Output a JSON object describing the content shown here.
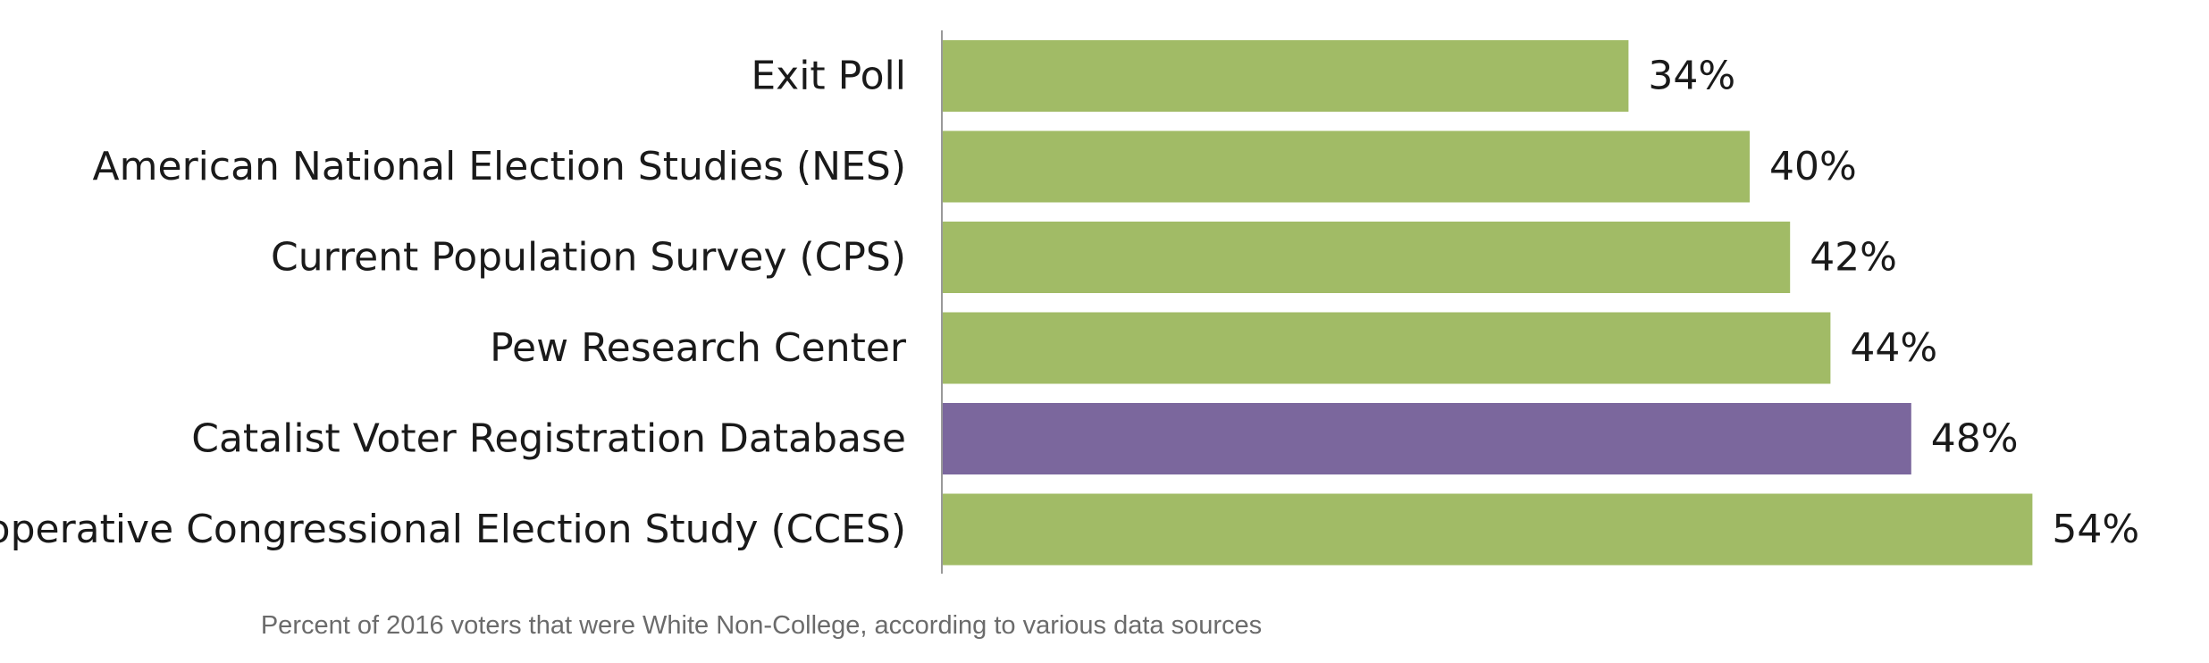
{
  "chart_data": {
    "type": "bar",
    "orientation": "horizontal",
    "categories": [
      "Exit Poll",
      "American National Election Studies (NES)",
      "Current Population Survey (CPS)",
      "Pew Research Center",
      "Catalist Voter Registration Database",
      "Cooperative Congressional Election Study (CCES)"
    ],
    "values": [
      34,
      40,
      42,
      44,
      48,
      54
    ],
    "value_labels": [
      "34%",
      "40%",
      "42%",
      "44%",
      "48%",
      "54%"
    ],
    "highlight_index": 4,
    "colors": {
      "default": "#a1bb66",
      "highlight": "#7b679d",
      "axis": "#999999"
    },
    "xlim": [
      0,
      54
    ],
    "grid": false,
    "legend": "none",
    "caption": "Percent of 2016 voters that were White Non-College, according to various data sources"
  }
}
